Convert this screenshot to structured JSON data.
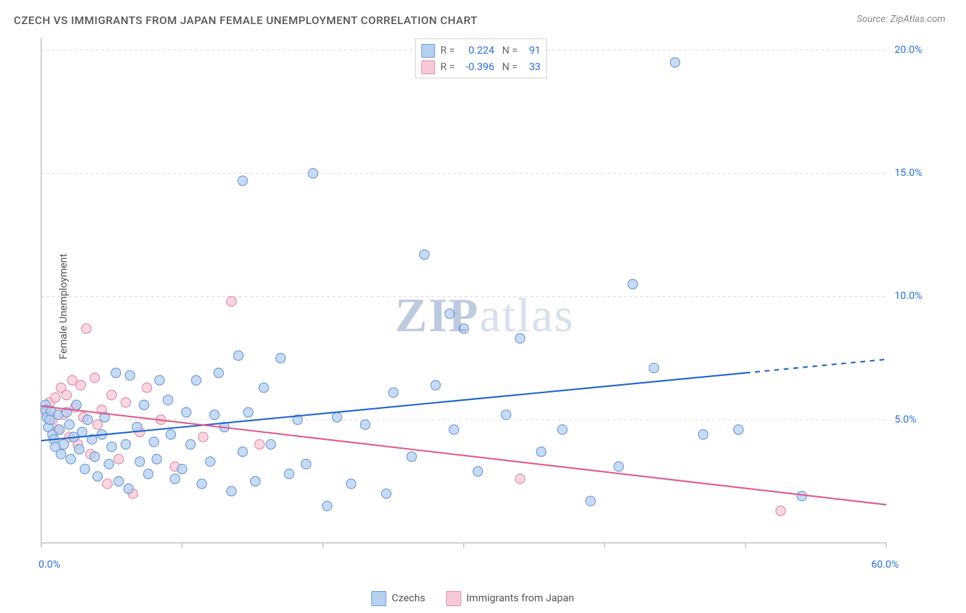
{
  "title": "CZECH VS IMMIGRANTS FROM JAPAN FEMALE UNEMPLOYMENT CORRELATION CHART",
  "source": "Source: ZipAtlas.com",
  "y_label": "Female Unemployment",
  "watermark_zip": "ZIP",
  "watermark_atlas": "atlas",
  "chart": {
    "type": "scatter_with_regression",
    "xlim": [
      0,
      60
    ],
    "ylim": [
      0,
      20.5
    ],
    "x_ticks": [
      0,
      10,
      20,
      30,
      40,
      50,
      60
    ],
    "x_tick_labels_shown": {
      "0": "0.0%",
      "60": "60.0%"
    },
    "y_grid": [
      5,
      10,
      15,
      20
    ],
    "y_tick_labels": {
      "5": "5.0%",
      "10": "10.0%",
      "15": "15.0%",
      "20": "20.0%"
    },
    "grid_color": "#d9d9d9",
    "grid_dash": "4,4",
    "axis_color": "#bfbfbf",
    "background_color": "#ffffff",
    "marker_radius": 7,
    "marker_stroke_width": 1.2,
    "line_width": 2.2,
    "series": [
      {
        "name": "Czechs",
        "fill": "#b7cff0",
        "stroke": "#6a9ad6",
        "line_color": "#1e66c9",
        "R": "0.224",
        "N": "91",
        "regression": {
          "x1": 0,
          "y1": 4.15,
          "x2": 50,
          "y2": 6.9,
          "dash_from_x": 50,
          "dash_to_x": 60,
          "dash_to_y": 7.45
        },
        "points": [
          [
            0.3,
            5.6
          ],
          [
            0.3,
            5.4
          ],
          [
            0.4,
            5.1
          ],
          [
            0.5,
            4.7
          ],
          [
            0.6,
            5.0
          ],
          [
            0.7,
            5.35
          ],
          [
            0.8,
            4.4
          ],
          [
            0.9,
            4.2
          ],
          [
            1.0,
            3.9
          ],
          [
            1.2,
            5.2
          ],
          [
            1.3,
            4.6
          ],
          [
            1.4,
            3.6
          ],
          [
            1.6,
            4.0
          ],
          [
            1.8,
            5.3
          ],
          [
            2.0,
            4.8
          ],
          [
            2.1,
            3.4
          ],
          [
            2.3,
            4.3
          ],
          [
            2.5,
            5.6
          ],
          [
            2.7,
            3.8
          ],
          [
            2.9,
            4.5
          ],
          [
            3.1,
            3.0
          ],
          [
            3.3,
            5.0
          ],
          [
            3.6,
            4.2
          ],
          [
            3.8,
            3.5
          ],
          [
            4.0,
            2.7
          ],
          [
            4.3,
            4.4
          ],
          [
            4.5,
            5.1
          ],
          [
            4.8,
            3.2
          ],
          [
            5.0,
            3.9
          ],
          [
            5.3,
            6.9
          ],
          [
            5.5,
            2.5
          ],
          [
            6.0,
            4.0
          ],
          [
            6.3,
            6.8
          ],
          [
            6.2,
            2.2
          ],
          [
            6.8,
            4.7
          ],
          [
            7.0,
            3.3
          ],
          [
            7.3,
            5.6
          ],
          [
            7.6,
            2.8
          ],
          [
            8.0,
            4.1
          ],
          [
            8.4,
            6.6
          ],
          [
            8.2,
            3.4
          ],
          [
            9.0,
            5.8
          ],
          [
            9.2,
            4.4
          ],
          [
            9.5,
            2.6
          ],
          [
            10.0,
            3.0
          ],
          [
            10.3,
            5.3
          ],
          [
            10.6,
            4.0
          ],
          [
            11.0,
            6.6
          ],
          [
            11.4,
            2.4
          ],
          [
            12.0,
            3.3
          ],
          [
            12.3,
            5.2
          ],
          [
            12.6,
            6.9
          ],
          [
            13.0,
            4.7
          ],
          [
            13.5,
            2.1
          ],
          [
            14.0,
            7.6
          ],
          [
            14.3,
            3.7
          ],
          [
            14.7,
            5.3
          ],
          [
            14.3,
            14.7
          ],
          [
            15.2,
            2.5
          ],
          [
            15.8,
            6.3
          ],
          [
            16.3,
            4.0
          ],
          [
            17.0,
            7.5
          ],
          [
            17.6,
            2.8
          ],
          [
            18.2,
            5.0
          ],
          [
            18.8,
            3.2
          ],
          [
            19.3,
            15.0
          ],
          [
            20.3,
            1.5
          ],
          [
            21.0,
            5.1
          ],
          [
            22.0,
            2.4
          ],
          [
            23.0,
            4.8
          ],
          [
            24.5,
            2.0
          ],
          [
            25.0,
            6.1
          ],
          [
            26.3,
            3.5
          ],
          [
            27.2,
            11.7
          ],
          [
            28.0,
            6.4
          ],
          [
            29.0,
            9.3
          ],
          [
            29.3,
            4.6
          ],
          [
            30.0,
            8.7
          ],
          [
            31.0,
            2.9
          ],
          [
            33.0,
            5.2
          ],
          [
            34.0,
            8.3
          ],
          [
            35.5,
            3.7
          ],
          [
            37.0,
            4.6
          ],
          [
            39.0,
            1.7
          ],
          [
            41.0,
            3.1
          ],
          [
            42.0,
            10.5
          ],
          [
            43.5,
            7.1
          ],
          [
            45.0,
            19.5
          ],
          [
            47.0,
            4.4
          ],
          [
            49.5,
            4.6
          ],
          [
            54.0,
            1.9
          ]
        ]
      },
      {
        "name": "Immigrants from Japan",
        "fill": "#f7c9d6",
        "stroke": "#e38aa5",
        "line_color": "#e05a88",
        "R": "-0.396",
        "N": "33",
        "regression": {
          "x1": 0,
          "y1": 5.55,
          "x2": 60,
          "y2": 1.55
        },
        "points": [
          [
            0.4,
            5.3
          ],
          [
            0.6,
            5.7
          ],
          [
            0.8,
            5.0
          ],
          [
            1.0,
            5.9
          ],
          [
            1.2,
            4.6
          ],
          [
            1.4,
            6.3
          ],
          [
            1.6,
            5.2
          ],
          [
            1.8,
            6.0
          ],
          [
            2.0,
            4.3
          ],
          [
            2.2,
            6.6
          ],
          [
            2.4,
            5.5
          ],
          [
            2.6,
            4.0
          ],
          [
            2.8,
            6.4
          ],
          [
            3.0,
            5.1
          ],
          [
            3.2,
            8.7
          ],
          [
            3.5,
            3.6
          ],
          [
            3.8,
            6.7
          ],
          [
            4.0,
            4.8
          ],
          [
            4.3,
            5.4
          ],
          [
            4.7,
            2.4
          ],
          [
            5.0,
            6.0
          ],
          [
            5.5,
            3.4
          ],
          [
            6.0,
            5.7
          ],
          [
            6.5,
            2.0
          ],
          [
            7.0,
            4.5
          ],
          [
            7.5,
            6.3
          ],
          [
            8.5,
            5.0
          ],
          [
            9.5,
            3.1
          ],
          [
            11.5,
            4.3
          ],
          [
            13.5,
            9.8
          ],
          [
            15.5,
            4.0
          ],
          [
            34.0,
            2.6
          ],
          [
            52.5,
            1.3
          ]
        ]
      }
    ],
    "top_legend_title_color": "#666",
    "top_legend_value_color": "#2a6fd6"
  },
  "bottom_legend": [
    {
      "label": "Czechs",
      "fill": "#b7cff0",
      "stroke": "#6a9ad6"
    },
    {
      "label": "Immigrants from Japan",
      "fill": "#f7c9d6",
      "stroke": "#e38aa5"
    }
  ]
}
